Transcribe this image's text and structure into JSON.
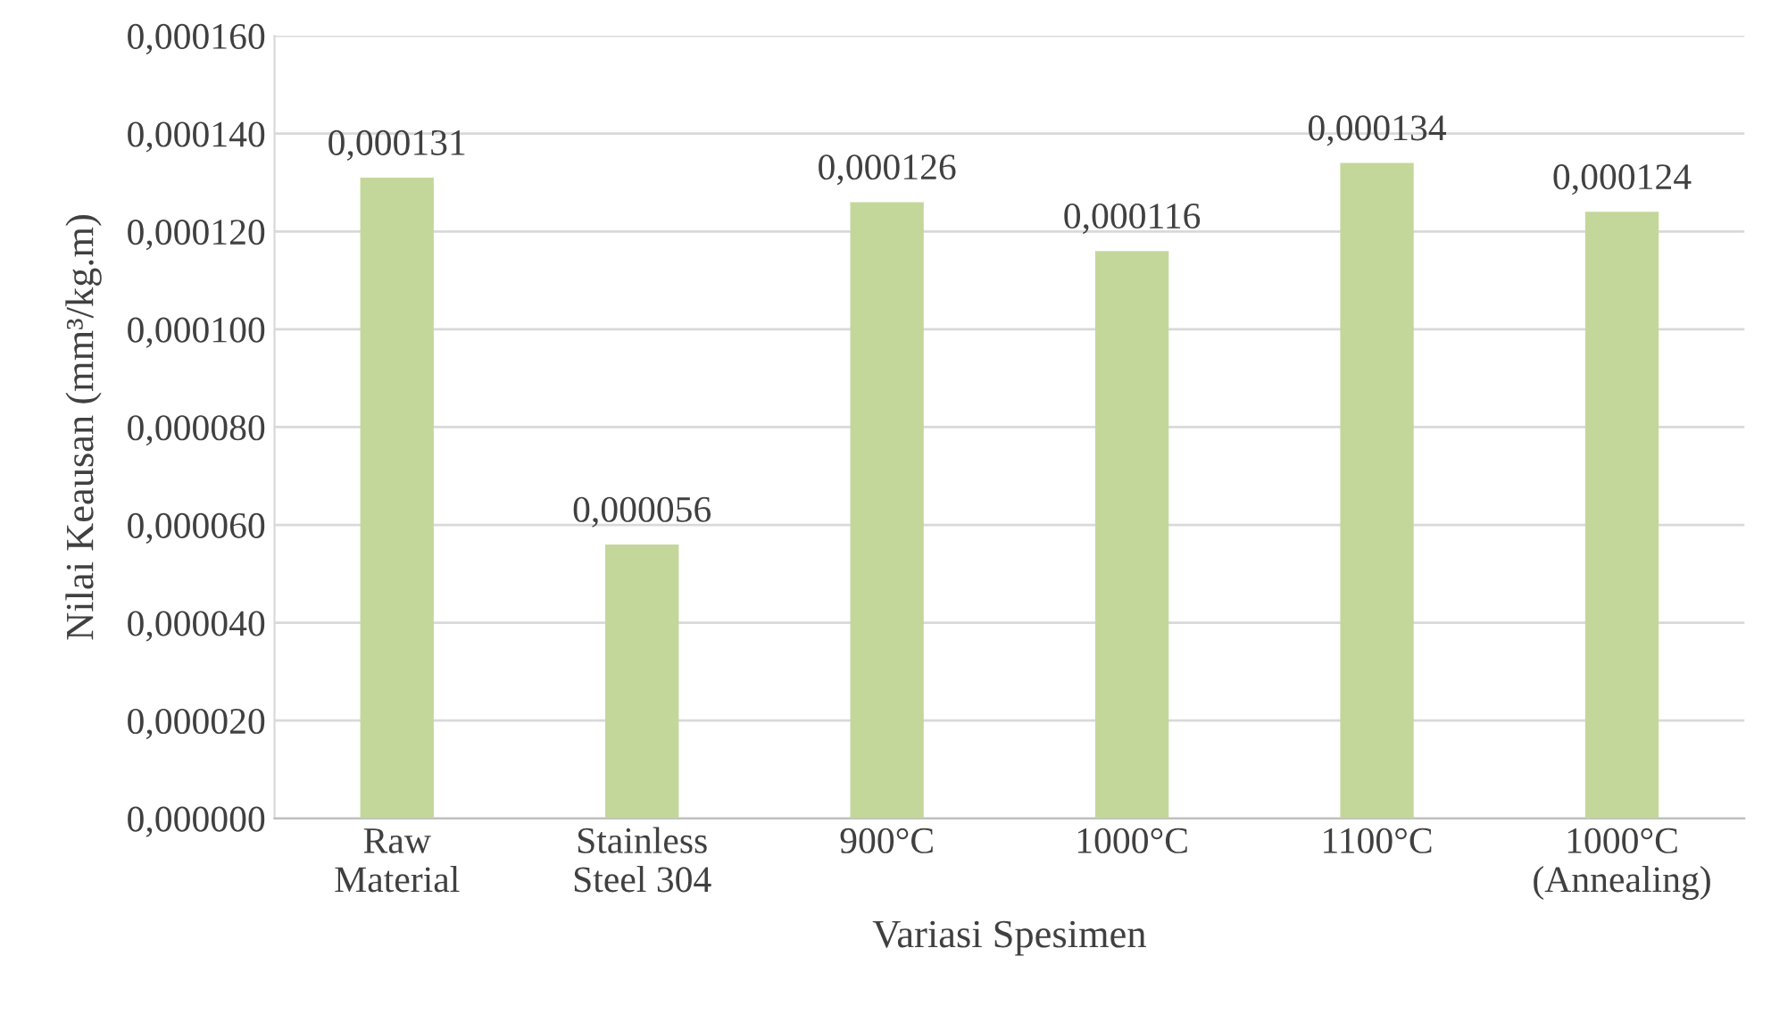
{
  "chart_data": {
    "type": "bar",
    "xlabel": "Variasi Spesimen",
    "ylabel": "Nilai Keausan (mm³/kg.m)",
    "categories": [
      "Raw\nMaterial",
      "Stainless\nSteel 304",
      "900°C",
      "1000°C",
      "1100°C",
      "1000°C\n(Annealing)"
    ],
    "values": [
      0.000131,
      5.6e-05,
      0.000126,
      0.000116,
      0.000134,
      0.000124
    ],
    "value_labels": [
      "0,000131",
      "0,000056",
      "0,000126",
      "0,000116",
      "0,000134",
      "0,000124"
    ],
    "color": "#c4d79b",
    "ylim": [
      0,
      0.00016
    ],
    "yticks": [
      {
        "value": 0,
        "label": "0,000000"
      },
      {
        "value": 2e-05,
        "label": "0,000020"
      },
      {
        "value": 4e-05,
        "label": "0,000040"
      },
      {
        "value": 6e-05,
        "label": "0,000060"
      },
      {
        "value": 8e-05,
        "label": "0,000080"
      },
      {
        "value": 0.0001,
        "label": "0,000100"
      },
      {
        "value": 0.00012,
        "label": "0,000120"
      },
      {
        "value": 0.00014,
        "label": "0,000140"
      },
      {
        "value": 0.00016,
        "label": "0,000160"
      }
    ],
    "grid": "y"
  }
}
